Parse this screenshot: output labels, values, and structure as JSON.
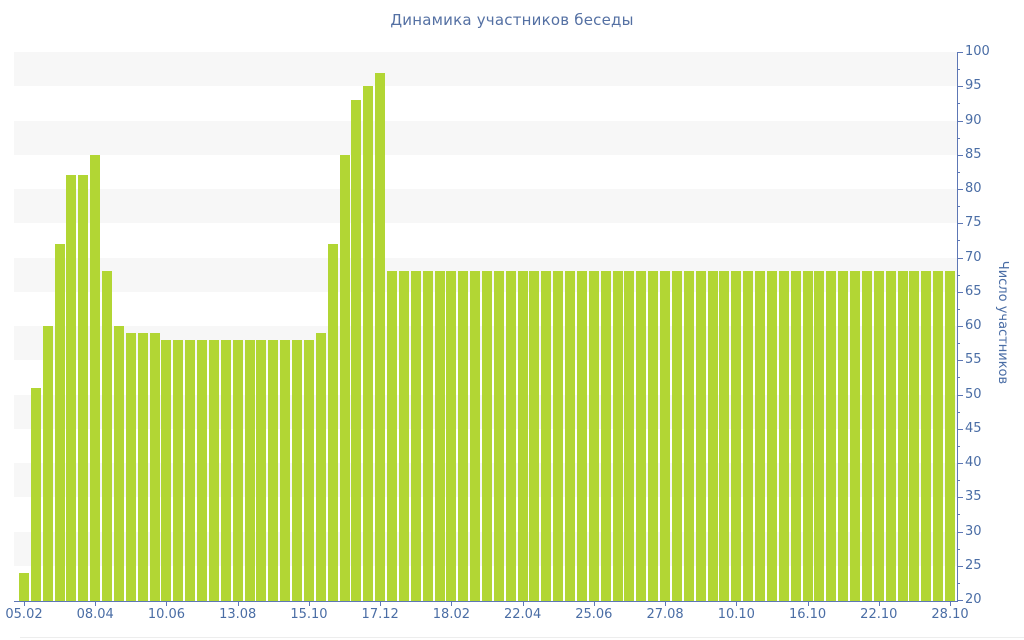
{
  "chart_data": {
    "type": "bar",
    "title": "Динамика участников беседы",
    "xlabel": "",
    "ylabel": "Число участников",
    "ylim": [
      20,
      100
    ],
    "y_tick_step": 5,
    "y_minor_tick_step": 2.5,
    "grid": "alternating-horizontal-bands",
    "legend": "none",
    "bar_color": "#b2d634",
    "band_color": "#f7f7f7",
    "axis_color": "#5d77b5",
    "tick_text_color": "#4a6da5",
    "title_color": "#5470a3",
    "y_tick_labels": [
      "20",
      "25",
      "30",
      "35",
      "40",
      "45",
      "50",
      "55",
      "60",
      "65",
      "70",
      "75",
      "80",
      "85",
      "90",
      "95",
      "100"
    ],
    "x_tick_labels": [
      {
        "label": "05.02",
        "bar_index": 0
      },
      {
        "label": "08.04",
        "bar_index": 6
      },
      {
        "label": "10.06",
        "bar_index": 12
      },
      {
        "label": "13.08",
        "bar_index": 18
      },
      {
        "label": "15.10",
        "bar_index": 24
      },
      {
        "label": "17.12",
        "bar_index": 30
      },
      {
        "label": "18.02",
        "bar_index": 36
      },
      {
        "label": "22.04",
        "bar_index": 42
      },
      {
        "label": "25.06",
        "bar_index": 48
      },
      {
        "label": "27.08",
        "bar_index": 54
      },
      {
        "label": "10.10",
        "bar_index": 60
      },
      {
        "label": "16.10",
        "bar_index": 66
      },
      {
        "label": "22.10",
        "bar_index": 72
      },
      {
        "label": "28.10",
        "bar_index": 78
      }
    ],
    "values": [
      24,
      51,
      60,
      72,
      82,
      82,
      85,
      68,
      60,
      59,
      59,
      59,
      58,
      58,
      58,
      58,
      58,
      58,
      58,
      58,
      58,
      58,
      58,
      58,
      58,
      59,
      72,
      85,
      93,
      95,
      97,
      68,
      68,
      68,
      68,
      68,
      68,
      68,
      68,
      68,
      68,
      68,
      68,
      68,
      68,
      68,
      68,
      68,
      68,
      68,
      68,
      68,
      68,
      68,
      68,
      68,
      68,
      68,
      68,
      68,
      68,
      68,
      68,
      68,
      68,
      68,
      68,
      68,
      68,
      68,
      68,
      68,
      68,
      68,
      68,
      68,
      68,
      68,
      68
    ]
  }
}
